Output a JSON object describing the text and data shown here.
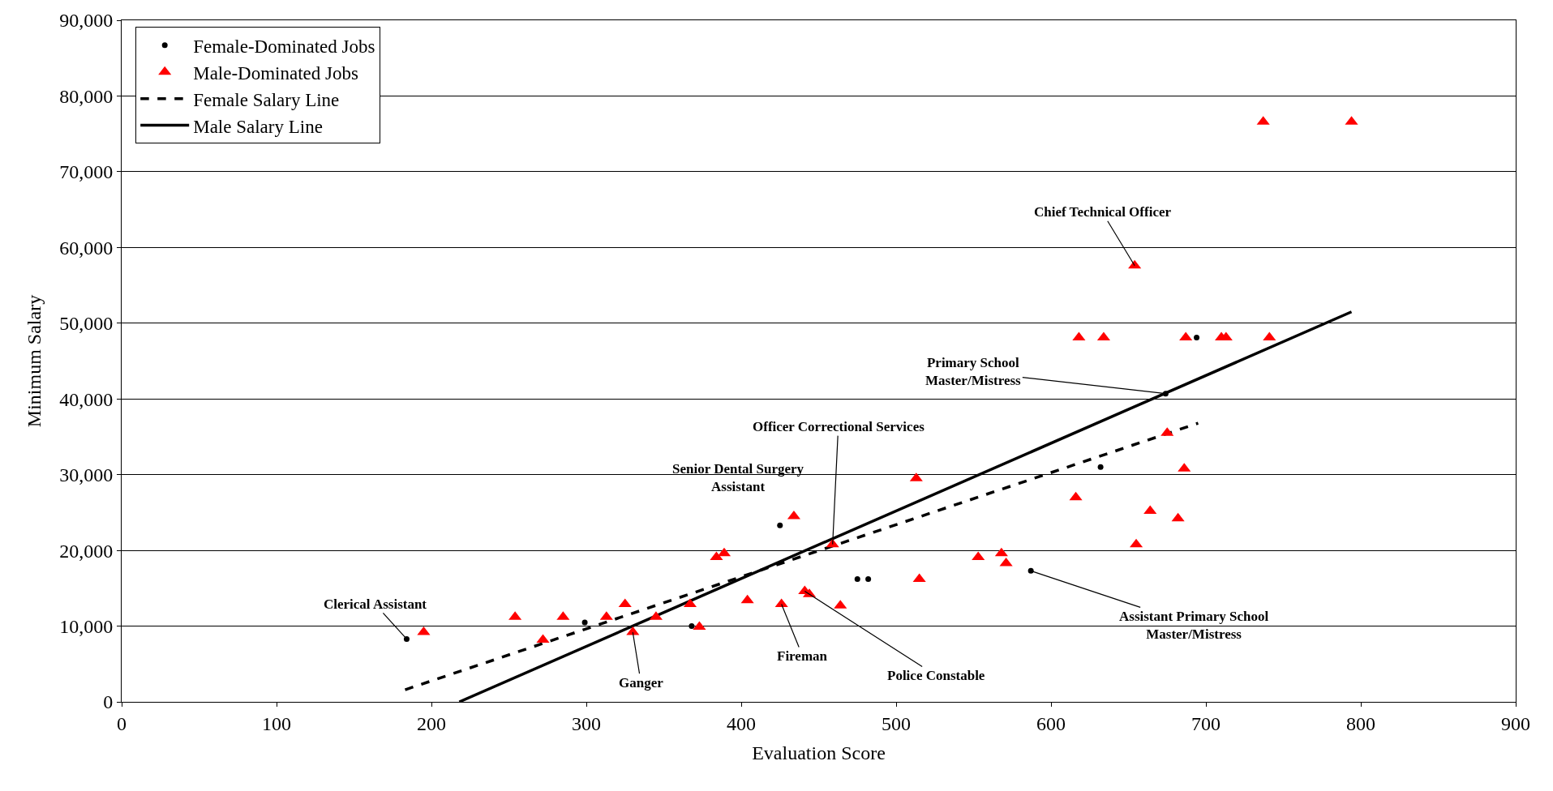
{
  "chart_data": {
    "type": "scatter",
    "xlabel": "Evaluation Score",
    "ylabel": "Minimum Salary",
    "xlim": [
      0,
      900
    ],
    "xticks": [
      0,
      100,
      200,
      300,
      400,
      500,
      600,
      700,
      800,
      900
    ],
    "ylim": [
      0,
      90000
    ],
    "yticks": [
      {
        "value": 0,
        "label": "0"
      },
      {
        "value": 10000,
        "label": "10,000"
      },
      {
        "value": 20000,
        "label": "20,000"
      },
      {
        "value": 30000,
        "label": "30,000"
      },
      {
        "value": 40000,
        "label": "40,000"
      },
      {
        "value": 50000,
        "label": "50,000"
      },
      {
        "value": 60000,
        "label": "60,000"
      },
      {
        "value": 70000,
        "label": "70,000"
      },
      {
        "value": 80000,
        "label": "80,000"
      },
      {
        "value": 90000,
        "label": "90,000"
      }
    ],
    "grid": "y",
    "legend": "top left",
    "series": [
      {
        "name": "Female-Dominated Jobs",
        "marker": "circle",
        "color": "#000000",
        "x": [
          184,
          299,
          368,
          425,
          475,
          482,
          587,
          632,
          674,
          694
        ],
        "values": [
          8300,
          10500,
          10000,
          23300,
          16200,
          16200,
          17300,
          31000,
          40700,
          48100
        ]
      },
      {
        "name": "Male-Dominated Jobs",
        "marker": "triangle",
        "color": "#ff0000",
        "x": [
          195,
          254,
          272,
          285,
          313,
          325,
          330,
          345,
          367,
          373,
          384,
          389,
          404,
          426,
          434,
          441,
          444,
          459,
          464,
          513,
          515,
          553,
          568,
          571,
          616,
          618,
          634,
          655,
          654,
          664,
          675,
          687,
          682,
          686,
          710,
          713,
          741,
          737,
          794
        ],
        "values": [
          9200,
          11200,
          8200,
          11200,
          11200,
          12900,
          9200,
          11200,
          12900,
          9900,
          19100,
          19600,
          13400,
          12900,
          24500,
          14600,
          14200,
          20800,
          12700,
          29500,
          16200,
          19100,
          19600,
          18300,
          27000,
          48100,
          48100,
          20800,
          57600,
          25200,
          35500,
          48100,
          24200,
          30800,
          48100,
          48100,
          48100,
          76600,
          76600
        ]
      },
      {
        "name": "Female Salary Line",
        "type": "line",
        "marker": "none",
        "line_style": "dashed",
        "color": "#000000",
        "x": [
          183,
          695
        ],
        "values": [
          1600,
          36800
        ]
      },
      {
        "name": "Male Salary Line",
        "type": "line",
        "marker": "none",
        "line_style": "solid",
        "color": "#000000",
        "x": [
          218,
          794
        ],
        "values": [
          0,
          51500
        ]
      }
    ],
    "annotations": [
      {
        "text": "Chief Technical Officer",
        "x": 654,
        "y": 57600
      },
      {
        "text": "Primary School\nMaster/Mistress",
        "x": 674,
        "y": 40700
      },
      {
        "text": "Officer Correctional Services",
        "x": 459,
        "y": 20800
      },
      {
        "text": "Senior Dental Surgery\nAssistant",
        "x": 425,
        "y": 23300
      },
      {
        "text": "Clerical Assistant",
        "x": 184,
        "y": 8300
      },
      {
        "text": "Ganger",
        "x": 330,
        "y": 9200
      },
      {
        "text": "Fireman",
        "x": 426,
        "y": 12900
      },
      {
        "text": "Police Constable",
        "x": 441,
        "y": 14600
      },
      {
        "text": "Assistant Primary School\nMaster/Mistress",
        "x": 587,
        "y": 17300
      }
    ]
  }
}
